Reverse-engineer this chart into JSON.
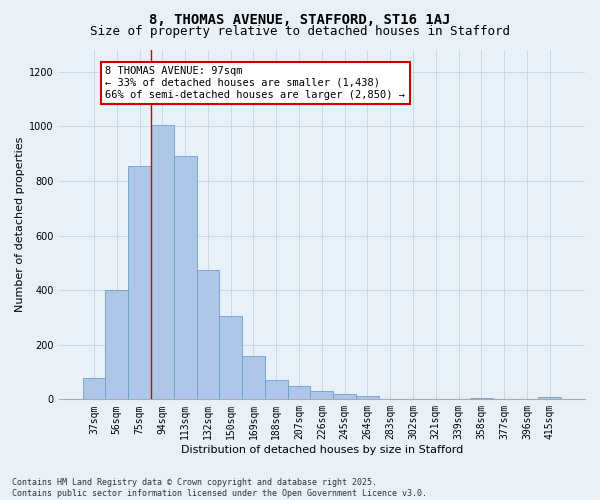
{
  "title_line1": "8, THOMAS AVENUE, STAFFORD, ST16 1AJ",
  "title_line2": "Size of property relative to detached houses in Stafford",
  "xlabel": "Distribution of detached houses by size in Stafford",
  "ylabel": "Number of detached properties",
  "categories": [
    "37sqm",
    "56sqm",
    "75sqm",
    "94sqm",
    "113sqm",
    "132sqm",
    "150sqm",
    "169sqm",
    "188sqm",
    "207sqm",
    "226sqm",
    "245sqm",
    "264sqm",
    "283sqm",
    "302sqm",
    "321sqm",
    "339sqm",
    "358sqm",
    "377sqm",
    "396sqm",
    "415sqm"
  ],
  "values": [
    80,
    400,
    855,
    1005,
    890,
    475,
    305,
    160,
    70,
    48,
    30,
    18,
    12,
    0,
    0,
    0,
    0,
    5,
    0,
    0,
    10
  ],
  "bar_color": "#aec6e8",
  "bar_edge_color": "#6ba0cc",
  "highlight_line_index": 3,
  "annotation_text": "8 THOMAS AVENUE: 97sqm\n← 33% of detached houses are smaller (1,438)\n66% of semi-detached houses are larger (2,850) →",
  "annotation_box_facecolor": "#ffffff",
  "annotation_box_edgecolor": "#cc0000",
  "ylim": [
    0,
    1280
  ],
  "yticks": [
    0,
    200,
    400,
    600,
    800,
    1000,
    1200
  ],
  "grid_color": "#c8d8e8",
  "bg_color": "#e8f0f8",
  "fig_facecolor": "#e8f0f8",
  "footer_line1": "Contains HM Land Registry data © Crown copyright and database right 2025.",
  "footer_line2": "Contains public sector information licensed under the Open Government Licence v3.0.",
  "title_fontsize": 10,
  "subtitle_fontsize": 9,
  "axis_label_fontsize": 8,
  "tick_fontsize": 7,
  "annotation_fontsize": 7.5,
  "footer_fontsize": 6
}
